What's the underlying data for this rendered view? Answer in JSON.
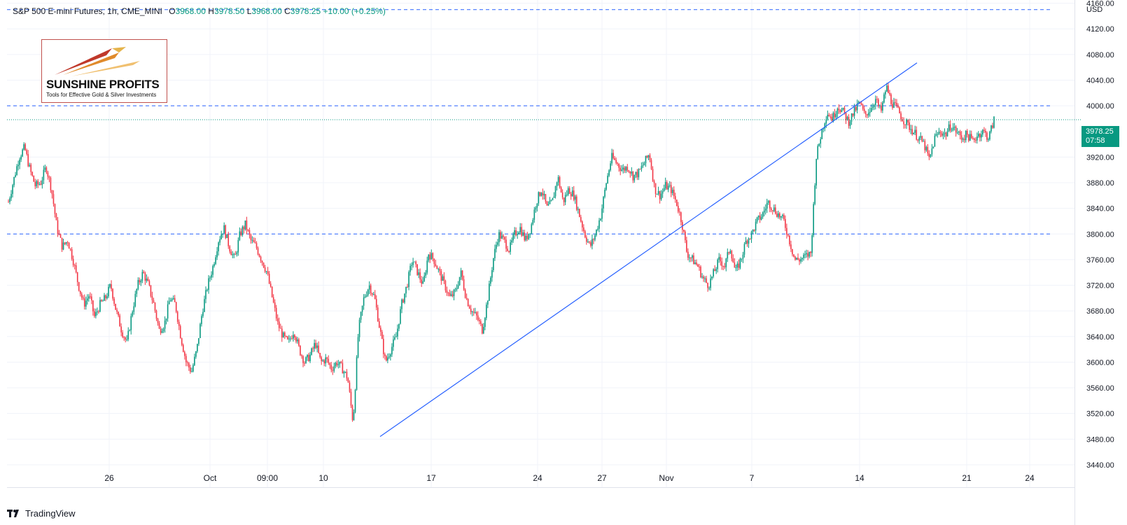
{
  "header": {
    "symbol": "S&P 500 E-mini Futures, 1h, CME_MINI",
    "open_label": "O",
    "open": "3968.00",
    "high_label": "H",
    "high": "3978.50",
    "low_label": "L",
    "low": "3968.00",
    "close_label": "C",
    "close": "3978.25",
    "change": "+10.00 (+0.25%)"
  },
  "currency": "USD",
  "logo": {
    "brand": "SUNSHINE PROFITS",
    "tagline": "Tools for Effective Gold & Silver Investments"
  },
  "footer": {
    "brand": "TradingView",
    "icon": "tradingview-logo-icon"
  },
  "colors": {
    "up": "#089981",
    "down": "#f23645",
    "line": "#2962ff",
    "grid": "#f0f3fa"
  },
  "chart_data": {
    "type": "candlestick",
    "yaxis": {
      "range": [
        3405,
        4165
      ],
      "ticks": [
        3440,
        3480,
        3520,
        3560,
        3600,
        3640,
        3680,
        3720,
        3760,
        3800,
        3840,
        3880,
        3920,
        4000,
        4040,
        4080,
        4120,
        4160
      ]
    },
    "xaxis": {
      "labels": [
        "26",
        "Oct",
        "09:00",
        "10",
        "17",
        "24",
        "27",
        "Nov",
        "7",
        "14",
        "21",
        "24"
      ]
    },
    "hlines": [
      4150,
      4000,
      3800
    ],
    "last_price_line": 3978.25,
    "last_price_label": "3978.25",
    "countdown": "07:58",
    "trendline": {
      "from": {
        "x": 0,
        "y": 3484
      },
      "to": {
        "x": 1,
        "y": 4067
      }
    },
    "path": [
      [
        0,
        3850
      ],
      [
        2,
        3920
      ],
      [
        3,
        3935
      ],
      [
        4,
        3900
      ],
      [
        5,
        3875
      ],
      [
        6,
        3880
      ],
      [
        7,
        3905
      ],
      [
        8,
        3870
      ],
      [
        9,
        3810
      ],
      [
        10,
        3780
      ],
      [
        11,
        3790
      ],
      [
        12,
        3760
      ],
      [
        13,
        3720
      ],
      [
        14,
        3690
      ],
      [
        15,
        3705
      ],
      [
        16,
        3670
      ],
      [
        17,
        3690
      ],
      [
        18,
        3700
      ],
      [
        19,
        3720
      ],
      [
        20,
        3680
      ],
      [
        21,
        3650
      ],
      [
        22,
        3630
      ],
      [
        23,
        3680
      ],
      [
        24,
        3720
      ],
      [
        25,
        3740
      ],
      [
        26,
        3720
      ],
      [
        27,
        3690
      ],
      [
        28,
        3650
      ],
      [
        29,
        3660
      ],
      [
        30,
        3700
      ],
      [
        31,
        3690
      ],
      [
        32,
        3640
      ],
      [
        33,
        3600
      ],
      [
        34,
        3585
      ],
      [
        35,
        3620
      ],
      [
        36,
        3680
      ],
      [
        37,
        3720
      ],
      [
        38,
        3750
      ],
      [
        39,
        3790
      ],
      [
        40,
        3810
      ],
      [
        41,
        3780
      ],
      [
        42,
        3760
      ],
      [
        43,
        3800
      ],
      [
        44,
        3815
      ],
      [
        45,
        3790
      ],
      [
        46,
        3780
      ],
      [
        47,
        3760
      ],
      [
        48,
        3740
      ],
      [
        49,
        3700
      ],
      [
        50,
        3660
      ],
      [
        51,
        3640
      ],
      [
        52,
        3630
      ],
      [
        53,
        3650
      ],
      [
        54,
        3620
      ],
      [
        55,
        3600
      ],
      [
        56,
        3610
      ],
      [
        57,
        3630
      ],
      [
        58,
        3600
      ],
      [
        59,
        3605
      ],
      [
        60,
        3590
      ],
      [
        61,
        3600
      ],
      [
        62,
        3590
      ],
      [
        63,
        3575
      ],
      [
        64,
        3505
      ],
      [
        65,
        3650
      ],
      [
        66,
        3700
      ],
      [
        67,
        3720
      ],
      [
        68,
        3700
      ],
      [
        69,
        3650
      ],
      [
        70,
        3600
      ],
      [
        71,
        3620
      ],
      [
        72,
        3640
      ],
      [
        73,
        3690
      ],
      [
        74,
        3720
      ],
      [
        75,
        3760
      ],
      [
        76,
        3740
      ],
      [
        77,
        3720
      ],
      [
        78,
        3770
      ],
      [
        79,
        3760
      ],
      [
        80,
        3740
      ],
      [
        81,
        3720
      ],
      [
        82,
        3700
      ],
      [
        83,
        3710
      ],
      [
        84,
        3740
      ],
      [
        85,
        3700
      ],
      [
        86,
        3680
      ],
      [
        87,
        3670
      ],
      [
        88,
        3650
      ],
      [
        89,
        3700
      ],
      [
        90,
        3760
      ],
      [
        91,
        3800
      ],
      [
        92,
        3790
      ],
      [
        93,
        3775
      ],
      [
        94,
        3800
      ],
      [
        95,
        3810
      ],
      [
        96,
        3790
      ],
      [
        97,
        3810
      ],
      [
        98,
        3850
      ],
      [
        99,
        3870
      ],
      [
        100,
        3840
      ],
      [
        101,
        3850
      ],
      [
        102,
        3890
      ],
      [
        103,
        3850
      ],
      [
        104,
        3870
      ],
      [
        105,
        3860
      ],
      [
        106,
        3830
      ],
      [
        107,
        3800
      ],
      [
        108,
        3780
      ],
      [
        109,
        3800
      ],
      [
        110,
        3830
      ],
      [
        111,
        3880
      ],
      [
        112,
        3920
      ],
      [
        113,
        3910
      ],
      [
        114,
        3900
      ],
      [
        115,
        3905
      ],
      [
        116,
        3890
      ],
      [
        117,
        3895
      ],
      [
        118,
        3910
      ],
      [
        119,
        3925
      ],
      [
        120,
        3870
      ],
      [
        121,
        3860
      ],
      [
        122,
        3875
      ],
      [
        123,
        3870
      ],
      [
        124,
        3850
      ],
      [
        125,
        3820
      ],
      [
        126,
        3770
      ],
      [
        127,
        3760
      ],
      [
        128,
        3750
      ],
      [
        129,
        3730
      ],
      [
        130,
        3720
      ],
      [
        131,
        3740
      ],
      [
        132,
        3760
      ],
      [
        133,
        3750
      ],
      [
        134,
        3780
      ],
      [
        135,
        3740
      ],
      [
        136,
        3760
      ],
      [
        137,
        3790
      ],
      [
        138,
        3800
      ],
      [
        139,
        3820
      ],
      [
        140,
        3830
      ],
      [
        141,
        3850
      ],
      [
        142,
        3840
      ],
      [
        143,
        3830
      ],
      [
        144,
        3820
      ],
      [
        145,
        3790
      ],
      [
        146,
        3760
      ],
      [
        147,
        3760
      ],
      [
        148,
        3765
      ],
      [
        149,
        3770
      ],
      [
        150,
        3920
      ],
      [
        151,
        3960
      ],
      [
        152,
        3990
      ],
      [
        153,
        3980
      ],
      [
        154,
        4000
      ],
      [
        155,
        3990
      ],
      [
        156,
        3975
      ],
      [
        157,
        3990
      ],
      [
        158,
        4005
      ],
      [
        159,
        3985
      ],
      [
        160,
        3995
      ],
      [
        161,
        4010
      ],
      [
        162,
        3990
      ],
      [
        163,
        4030
      ],
      [
        164,
        4005
      ],
      [
        165,
        3995
      ],
      [
        166,
        3980
      ],
      [
        167,
        3970
      ],
      [
        168,
        3960
      ],
      [
        169,
        3950
      ],
      [
        170,
        3940
      ],
      [
        171,
        3915
      ],
      [
        172,
        3950
      ],
      [
        173,
        3960
      ],
      [
        174,
        3955
      ],
      [
        175,
        3970
      ],
      [
        176,
        3960
      ],
      [
        177,
        3950
      ],
      [
        178,
        3955
      ],
      [
        179,
        3945
      ],
      [
        180,
        3955
      ],
      [
        181,
        3960
      ],
      [
        182,
        3950
      ],
      [
        183,
        3978
      ]
    ]
  }
}
